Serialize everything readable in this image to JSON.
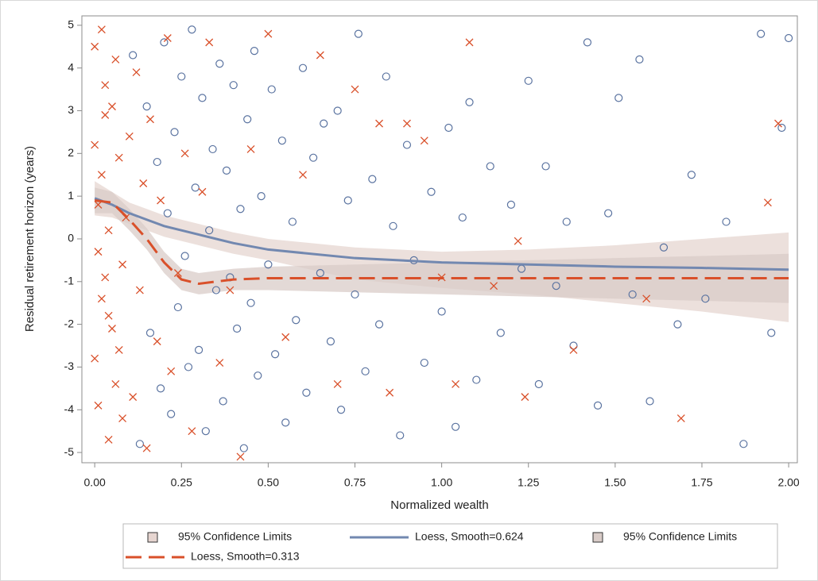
{
  "chart_data": {
    "type": "scatter",
    "x_label": "Normalized wealth",
    "y_label": "Residual retirement horizon (years)",
    "xlim": [
      -0.037,
      2.025
    ],
    "ylim": [
      -5.24,
      5.22
    ],
    "xticks": [
      {
        "value": 0,
        "label": "0.00"
      },
      {
        "value": 0.25,
        "label": "0.25"
      },
      {
        "value": 0.5,
        "label": "0.50"
      },
      {
        "value": 0.75,
        "label": "0.75"
      },
      {
        "value": 1,
        "label": "1.00"
      },
      {
        "value": 1.25,
        "label": "1.25"
      },
      {
        "value": 1.5,
        "label": "1.50"
      },
      {
        "value": 1.75,
        "label": "1.75"
      },
      {
        "value": 2,
        "label": "2.00"
      }
    ],
    "yticks": [
      5,
      4,
      3,
      2,
      1,
      0,
      -1,
      -2,
      -3,
      -4,
      -5
    ],
    "scatter": [
      {
        "marker": "circle",
        "color": "#5a73a0",
        "points": [
          [
            0.11,
            4.3
          ],
          [
            0.13,
            -4.8
          ],
          [
            0.15,
            3.1
          ],
          [
            0.16,
            -2.2
          ],
          [
            0.18,
            1.8
          ],
          [
            0.19,
            -3.5
          ],
          [
            0.2,
            4.6
          ],
          [
            0.21,
            0.6
          ],
          [
            0.22,
            -4.1
          ],
          [
            0.23,
            2.5
          ],
          [
            0.24,
            -1.6
          ],
          [
            0.25,
            3.8
          ],
          [
            0.26,
            -0.4
          ],
          [
            0.27,
            -3.0
          ],
          [
            0.28,
            4.9
          ],
          [
            0.29,
            1.2
          ],
          [
            0.3,
            -2.6
          ],
          [
            0.31,
            3.3
          ],
          [
            0.32,
            -4.5
          ],
          [
            0.33,
            0.2
          ],
          [
            0.34,
            2.1
          ],
          [
            0.35,
            -1.2
          ],
          [
            0.36,
            4.1
          ],
          [
            0.37,
            -3.8
          ],
          [
            0.38,
            1.6
          ],
          [
            0.39,
            -0.9
          ],
          [
            0.4,
            3.6
          ],
          [
            0.41,
            -2.1
          ],
          [
            0.42,
            0.7
          ],
          [
            0.43,
            -4.9
          ],
          [
            0.44,
            2.8
          ],
          [
            0.45,
            -1.5
          ],
          [
            0.46,
            4.4
          ],
          [
            0.47,
            -3.2
          ],
          [
            0.48,
            1.0
          ],
          [
            0.5,
            -0.6
          ],
          [
            0.51,
            3.5
          ],
          [
            0.52,
            -2.7
          ],
          [
            0.54,
            2.3
          ],
          [
            0.55,
            -4.3
          ],
          [
            0.57,
            0.4
          ],
          [
            0.58,
            -1.9
          ],
          [
            0.6,
            4.0
          ],
          [
            0.61,
            -3.6
          ],
          [
            0.63,
            1.9
          ],
          [
            0.65,
            -0.8
          ],
          [
            0.66,
            2.7
          ],
          [
            0.68,
            -2.4
          ],
          [
            0.7,
            3.0
          ],
          [
            0.71,
            -4.0
          ],
          [
            0.73,
            0.9
          ],
          [
            0.75,
            -1.3
          ],
          [
            0.76,
            4.8
          ],
          [
            0.78,
            -3.1
          ],
          [
            0.8,
            1.4
          ],
          [
            0.82,
            -2.0
          ],
          [
            0.84,
            3.8
          ],
          [
            0.86,
            0.3
          ],
          [
            0.88,
            -4.6
          ],
          [
            0.9,
            2.2
          ],
          [
            0.92,
            -0.5
          ],
          [
            0.95,
            -2.9
          ],
          [
            0.97,
            1.1
          ],
          [
            1.0,
            -1.7
          ],
          [
            1.02,
            2.6
          ],
          [
            1.04,
            -4.4
          ],
          [
            1.06,
            0.5
          ],
          [
            1.08,
            3.2
          ],
          [
            1.1,
            -3.3
          ],
          [
            1.14,
            1.7
          ],
          [
            1.17,
            -2.2
          ],
          [
            1.2,
            0.8
          ],
          [
            1.23,
            -0.7
          ],
          [
            1.25,
            3.7
          ],
          [
            1.28,
            -3.4
          ],
          [
            1.3,
            1.7
          ],
          [
            1.33,
            -1.1
          ],
          [
            1.36,
            0.4
          ],
          [
            1.38,
            -2.5
          ],
          [
            1.42,
            4.6
          ],
          [
            1.45,
            -3.9
          ],
          [
            1.48,
            0.6
          ],
          [
            1.51,
            3.3
          ],
          [
            1.55,
            -1.3
          ],
          [
            1.57,
            4.2
          ],
          [
            1.6,
            -3.8
          ],
          [
            1.64,
            -0.2
          ],
          [
            1.68,
            -2.0
          ],
          [
            1.72,
            1.5
          ],
          [
            1.76,
            -1.4
          ],
          [
            1.82,
            0.4
          ],
          [
            1.87,
            -4.8
          ],
          [
            1.92,
            4.8
          ],
          [
            1.95,
            -2.2
          ],
          [
            1.98,
            2.6
          ],
          [
            2.0,
            4.7
          ]
        ]
      },
      {
        "marker": "x",
        "color": "#d9502a",
        "points": [
          [
            0.0,
            4.5
          ],
          [
            0.01,
            -3.9
          ],
          [
            0.0,
            2.2
          ],
          [
            0.02,
            -1.4
          ],
          [
            0.01,
            0.8
          ],
          [
            0.03,
            3.6
          ],
          [
            0.0,
            -2.8
          ],
          [
            0.02,
            1.5
          ],
          [
            0.04,
            -4.7
          ],
          [
            0.01,
            -0.3
          ],
          [
            0.03,
            2.9
          ],
          [
            0.05,
            -2.1
          ],
          [
            0.02,
            4.9
          ],
          [
            0.04,
            0.2
          ],
          [
            0.06,
            -3.4
          ],
          [
            0.03,
            -0.9
          ],
          [
            0.05,
            3.1
          ],
          [
            0.07,
            1.9
          ],
          [
            0.04,
            -1.8
          ],
          [
            0.08,
            -4.2
          ],
          [
            0.06,
            4.2
          ],
          [
            0.09,
            0.5
          ],
          [
            0.07,
            -2.6
          ],
          [
            0.1,
            2.4
          ],
          [
            0.08,
            -0.6
          ],
          [
            0.11,
            -3.7
          ],
          [
            0.12,
            3.9
          ],
          [
            0.13,
            -1.2
          ],
          [
            0.14,
            1.3
          ],
          [
            0.15,
            -4.9
          ],
          [
            0.16,
            2.8
          ],
          [
            0.18,
            -2.4
          ],
          [
            0.19,
            0.9
          ],
          [
            0.21,
            4.7
          ],
          [
            0.22,
            -3.1
          ],
          [
            0.24,
            -0.8
          ],
          [
            0.26,
            2.0
          ],
          [
            0.28,
            -4.5
          ],
          [
            0.31,
            1.1
          ],
          [
            0.33,
            4.6
          ],
          [
            0.36,
            -2.9
          ],
          [
            0.39,
            -1.2
          ],
          [
            0.42,
            -5.1
          ],
          [
            0.45,
            2.1
          ],
          [
            0.5,
            4.8
          ],
          [
            0.55,
            -2.3
          ],
          [
            0.6,
            1.5
          ],
          [
            0.65,
            4.3
          ],
          [
            0.7,
            -3.4
          ],
          [
            0.75,
            3.5
          ],
          [
            0.82,
            2.7
          ],
          [
            0.85,
            -3.6
          ],
          [
            0.9,
            2.7
          ],
          [
            0.95,
            2.3
          ],
          [
            1.0,
            -0.9
          ],
          [
            1.04,
            -3.4
          ],
          [
            1.08,
            4.6
          ],
          [
            1.15,
            -1.1
          ],
          [
            1.22,
            -0.05
          ],
          [
            1.24,
            -3.7
          ],
          [
            1.38,
            -2.6
          ],
          [
            1.59,
            -1.4
          ],
          [
            1.69,
            -4.2
          ],
          [
            1.94,
            0.85
          ],
          [
            1.97,
            2.7
          ]
        ]
      }
    ],
    "series": [
      {
        "name": "95% Confidence Limits",
        "kind": "band",
        "color": "#e6d5d0",
        "x": [
          0,
          0.05,
          0.1,
          0.15,
          0.2,
          0.25,
          0.3,
          0.4,
          0.5,
          0.75,
          1,
          1.25,
          1.5,
          1.75,
          2
        ],
        "upper": [
          1.35,
          1.1,
          0.85,
          0.7,
          0.55,
          0.45,
          0.35,
          0.15,
          0.0,
          -0.2,
          -0.3,
          -0.25,
          -0.15,
          0.0,
          0.15
        ],
        "lower": [
          0.55,
          0.5,
          0.35,
          0.2,
          0.05,
          -0.05,
          -0.15,
          -0.35,
          -0.5,
          -0.95,
          -1.15,
          -1.3,
          -1.5,
          -1.7,
          -1.95
        ]
      },
      {
        "name": "Loess, Smooth=0.624",
        "kind": "line",
        "color": "#7288b0",
        "dash": false,
        "x": [
          0,
          0.05,
          0.1,
          0.15,
          0.2,
          0.25,
          0.3,
          0.4,
          0.5,
          0.75,
          1,
          1.25,
          1.5,
          1.75,
          2
        ],
        "y": [
          0.95,
          0.8,
          0.6,
          0.45,
          0.3,
          0.2,
          0.1,
          -0.1,
          -0.25,
          -0.45,
          -0.55,
          -0.6,
          -0.65,
          -0.68,
          -0.72
        ]
      },
      {
        "name": "95% Confidence Limits",
        "kind": "band",
        "color": "#d9ccc8",
        "x": [
          0,
          0.05,
          0.1,
          0.15,
          0.2,
          0.25,
          0.3,
          0.4,
          0.5,
          0.75,
          1,
          1.25,
          1.5,
          1.75,
          2
        ],
        "upper": [
          1.2,
          1.1,
          0.7,
          0.25,
          -0.3,
          -0.7,
          -0.8,
          -0.7,
          -0.65,
          -0.6,
          -0.55,
          -0.5,
          -0.45,
          -0.4,
          -0.35
        ],
        "lower": [
          0.6,
          0.6,
          0.2,
          -0.25,
          -0.8,
          -1.2,
          -1.3,
          -1.2,
          -1.2,
          -1.25,
          -1.3,
          -1.35,
          -1.4,
          -1.45,
          -1.5
        ]
      },
      {
        "name": "Loess, Smooth=0.313",
        "kind": "line",
        "color": "#d9502a",
        "dash": true,
        "x": [
          0,
          0.05,
          0.1,
          0.15,
          0.2,
          0.25,
          0.3,
          0.4,
          0.5,
          0.75,
          1,
          1.25,
          1.5,
          1.75,
          2
        ],
        "y": [
          0.9,
          0.85,
          0.45,
          0.0,
          -0.55,
          -0.95,
          -1.05,
          -0.95,
          -0.92,
          -0.92,
          -0.92,
          -0.92,
          -0.92,
          -0.92,
          -0.92
        ]
      }
    ]
  }
}
